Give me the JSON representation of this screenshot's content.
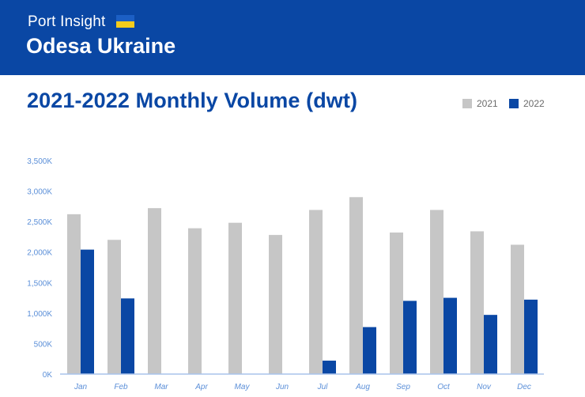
{
  "header": {
    "brand": "Port Insight",
    "flag_colors": [
      "#1c5fc4",
      "#f5cc1b"
    ],
    "location": "Odesa Ukraine",
    "background": "#0a47a4"
  },
  "chart_title": "2021-2022 Monthly Volume (dwt)",
  "colors": {
    "title": "#0a47a4",
    "series_2021": "#c6c6c6",
    "series_2022": "#0a47a4",
    "axis_labels": "#5b8fd8",
    "axis_line": "#a9c4ec"
  },
  "chart_data": {
    "type": "bar",
    "title": "2021-2022 Monthly Volume (dwt)",
    "xlabel": "",
    "ylabel": "",
    "categories": [
      "Jan",
      "Feb",
      "Mar",
      "Apr",
      "May",
      "Jun",
      "Jul",
      "Aug",
      "Sep",
      "Oct",
      "Nov",
      "Dec"
    ],
    "series": [
      {
        "name": "2021",
        "values": [
          2620,
          2200,
          2720,
          2390,
          2480,
          2280,
          2690,
          2900,
          2320,
          2690,
          2340,
          2120
        ]
      },
      {
        "name": "2022",
        "values": [
          2040,
          1240,
          0,
          0,
          0,
          0,
          220,
          770,
          1200,
          1250,
          970,
          1220
        ]
      }
    ],
    "ylim": [
      0,
      3500
    ],
    "yticks": [
      0,
      500,
      1000,
      1500,
      2000,
      2500,
      3000,
      3500
    ],
    "ytick_labels": [
      "0K",
      "500K",
      "1,000K",
      "1,500K",
      "2,000K",
      "2,500K",
      "3,000K",
      "3,500K"
    ],
    "grid": false,
    "legend": "top-right"
  }
}
